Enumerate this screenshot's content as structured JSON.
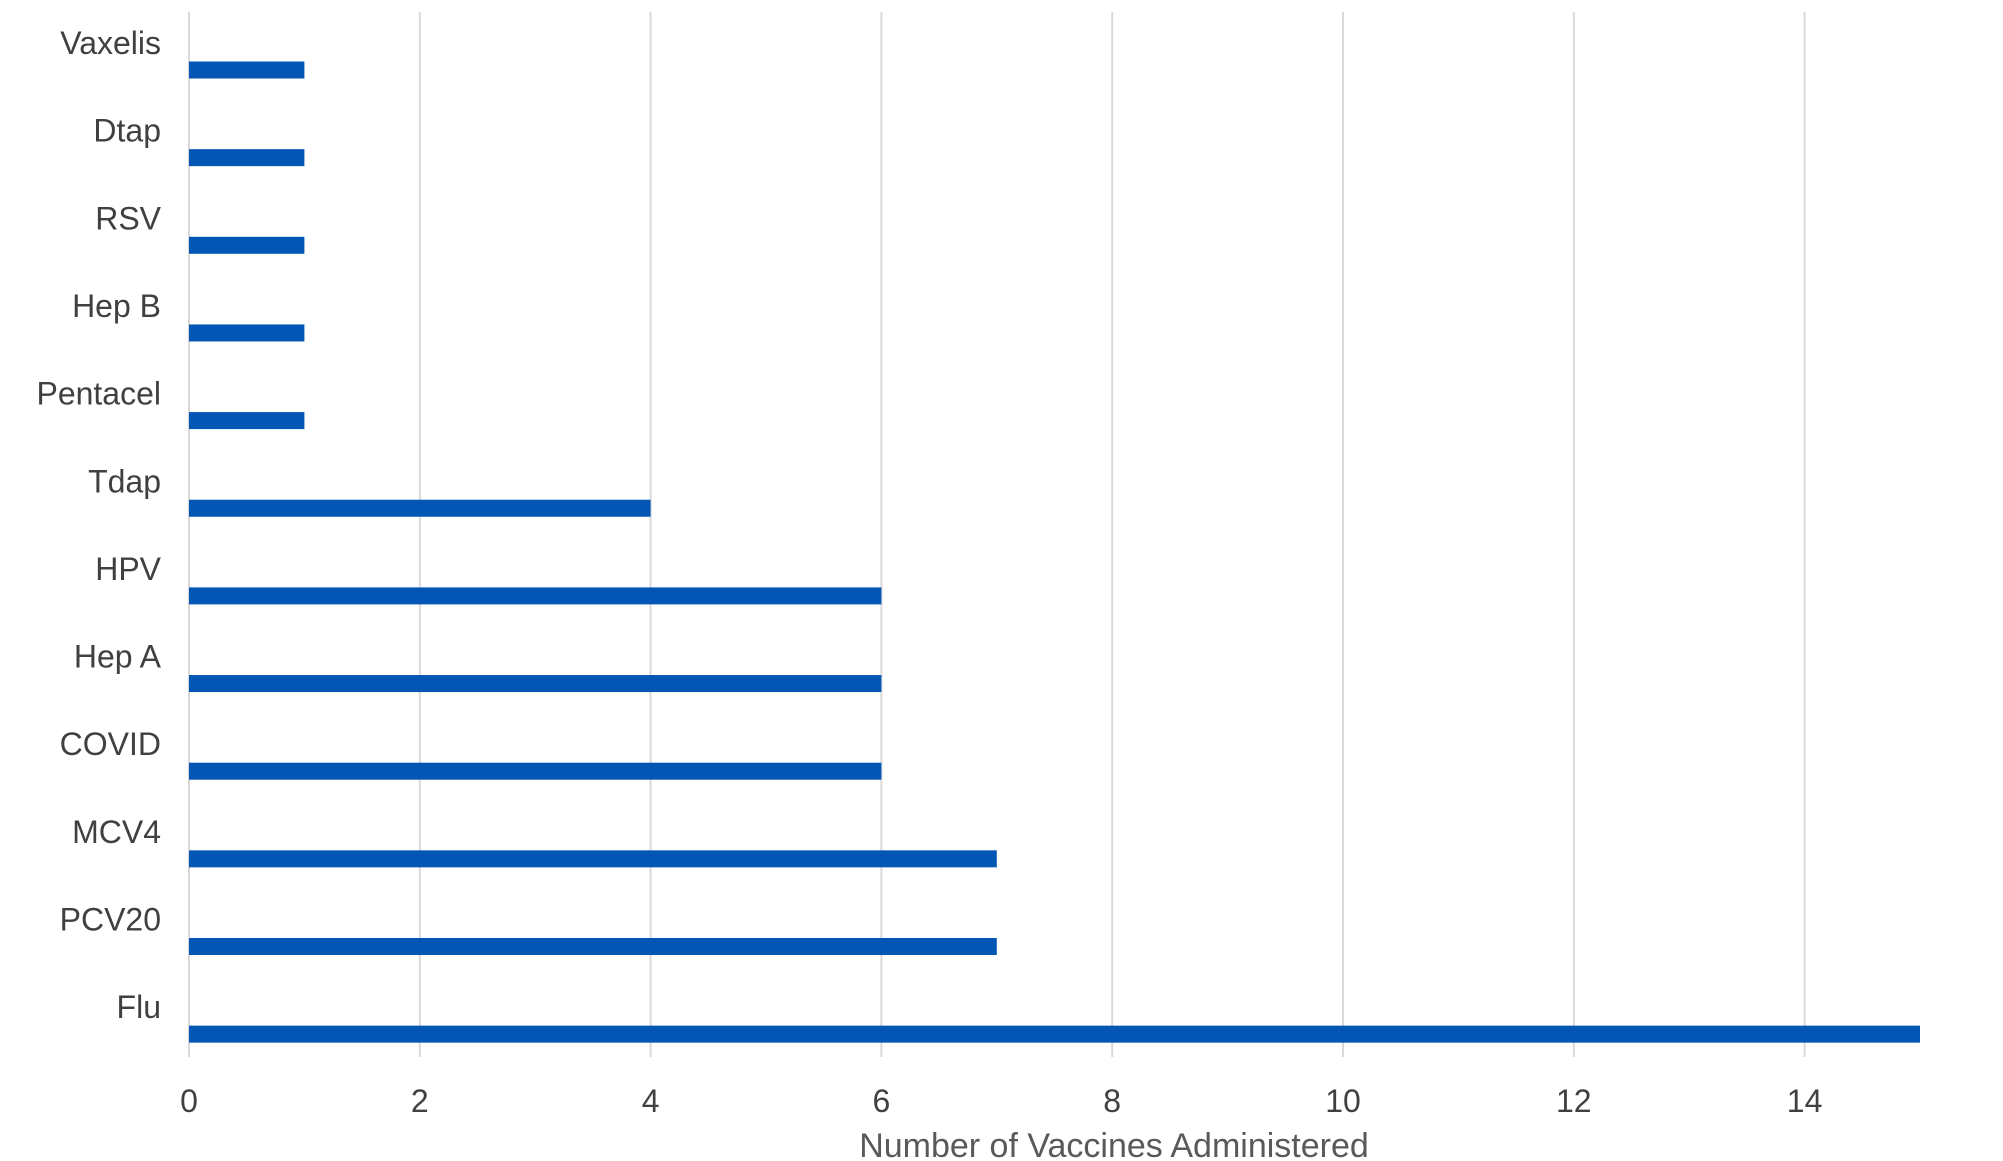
{
  "chart_data": {
    "type": "bar",
    "orientation": "horizontal",
    "categories": [
      "Vaxelis",
      "Dtap",
      "RSV",
      "Hep B",
      "Pentacel",
      "Tdap",
      "HPV",
      "Hep A",
      "COVID",
      "MCV4",
      "PCV20",
      "Flu"
    ],
    "values": [
      1,
      1,
      1,
      1,
      1,
      4,
      6,
      6,
      6,
      7,
      7,
      15
    ],
    "xlabel": "Number of Vaccines Administered",
    "ylabel": "",
    "xlim": [
      0,
      15
    ],
    "xticks": [
      0,
      2,
      4,
      6,
      8,
      10,
      12,
      14
    ],
    "grid": true,
    "legend": "none",
    "bar_color": "#0456b4"
  }
}
